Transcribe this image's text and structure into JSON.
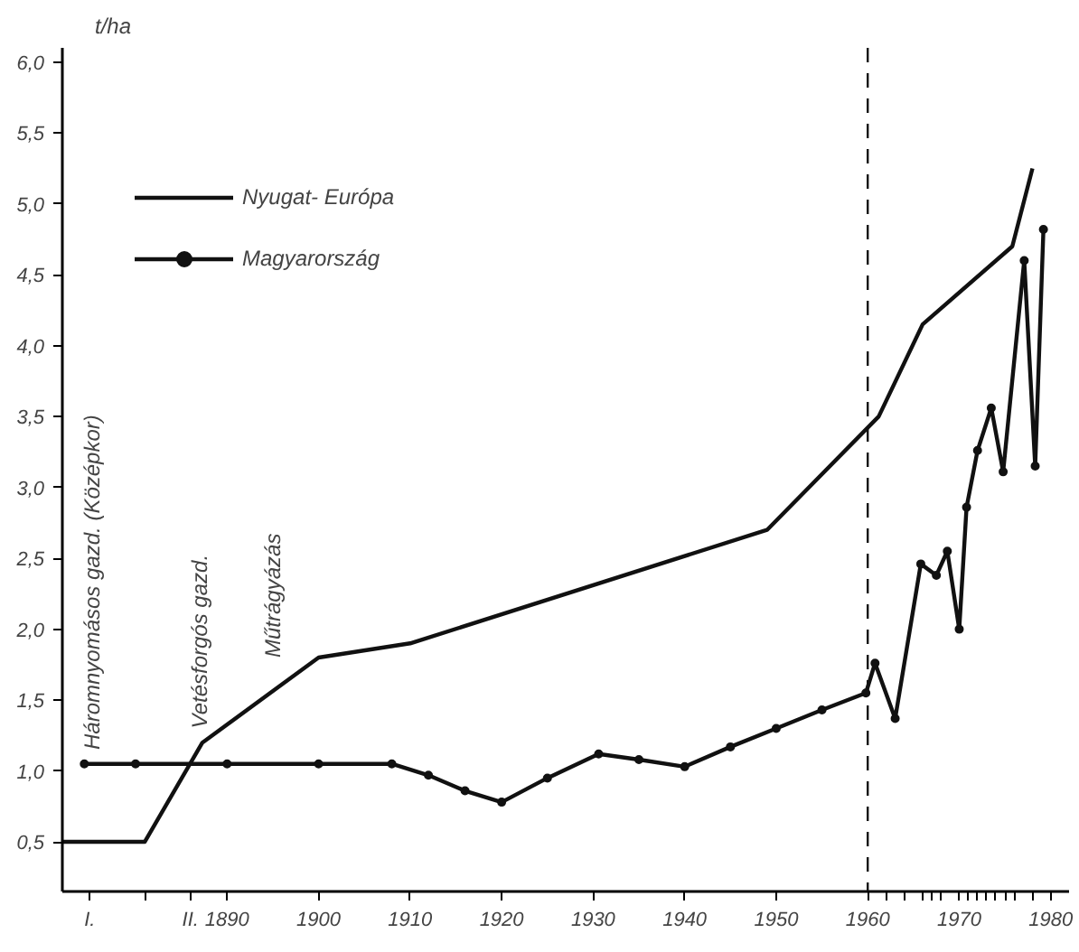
{
  "chart_data": {
    "type": "line",
    "ylabel": "t/ha",
    "xlim": [
      1872,
      1982
    ],
    "ylim": [
      0.15,
      6.1
    ],
    "xticks": [
      {
        "value": 1875,
        "label": "I."
      },
      {
        "value": 1881,
        "label": null
      },
      {
        "value": 1886,
        "label": "II."
      },
      1890,
      1900,
      1910,
      1920,
      1930,
      1940,
      1950,
      1960,
      {
        "value": 1962,
        "label": null
      },
      {
        "value": 1964,
        "label": null
      },
      {
        "value": 1966,
        "label": null
      },
      {
        "value": 1967,
        "label": null
      },
      {
        "value": 1968,
        "label": null
      },
      1970,
      {
        "value": 1971,
        "label": null
      },
      {
        "value": 1972,
        "label": null
      },
      {
        "value": 1973,
        "label": null
      },
      {
        "value": 1974,
        "label": null
      },
      {
        "value": 1975,
        "label": null
      },
      {
        "value": 1976,
        "label": null
      },
      {
        "value": 1978,
        "label": null
      },
      1980
    ],
    "yticks": [
      {
        "value": 0.5,
        "label": "0,5"
      },
      {
        "value": 1.0,
        "label": "1,0"
      },
      {
        "value": 1.5,
        "label": "1,5"
      },
      {
        "value": 2.0,
        "label": "2,0"
      },
      {
        "value": 2.5,
        "label": "2,5"
      },
      {
        "value": 3.0,
        "label": "3,0"
      },
      {
        "value": 3.5,
        "label": "3,5"
      },
      {
        "value": 4.0,
        "label": "4,0"
      },
      {
        "value": 4.5,
        "label": "4,5"
      },
      {
        "value": 5.0,
        "label": "5,0"
      },
      {
        "value": 5.5,
        "label": "5,5"
      },
      {
        "value": 6.0,
        "label": "6,0"
      }
    ],
    "grid": false,
    "legend": "top left",
    "series": [
      {
        "name": "Nyugat- Európa",
        "color": "#111111",
        "marker": "none",
        "x": [
          1872,
          1881,
          1887.3,
          1900,
          1910,
          1949,
          1961.2,
          1966,
          1975.8,
          1978
        ],
        "values": [
          0.5,
          0.5,
          1.2,
          1.8,
          1.9,
          2.7,
          3.5,
          4.15,
          4.7,
          5.25
        ]
      },
      {
        "name": "Magyarország",
        "color": "#111111",
        "marker": "circle",
        "x": [
          1874.4,
          1880,
          1890,
          1900,
          1908,
          1912,
          1916,
          1920,
          1925,
          1930.6,
          1935,
          1940,
          1945,
          1950,
          1955,
          1959.8,
          1960.8,
          1963,
          1965.8,
          1967.5,
          1968.7,
          1970,
          1970.8,
          1972,
          1973.5,
          1974.8,
          1977.1,
          1978.3,
          1979.2
        ],
        "values": [
          1.05,
          1.05,
          1.05,
          1.05,
          1.05,
          0.97,
          0.86,
          0.78,
          0.95,
          1.12,
          1.08,
          1.03,
          1.17,
          1.3,
          1.43,
          1.55,
          1.76,
          1.37,
          2.46,
          2.38,
          2.55,
          2.0,
          2.86,
          3.26,
          3.56,
          3.11,
          4.6,
          3.15,
          4.82
        ]
      }
    ],
    "ref_lines": [
      {
        "axis": "x",
        "value": 1960,
        "line_style": "dashed",
        "color": "#111111"
      }
    ],
    "annotations": [
      "Háromnyomásos gazd. (Középkor)",
      "Vetésforgós gazd.",
      "Műtrágyázás"
    ]
  }
}
